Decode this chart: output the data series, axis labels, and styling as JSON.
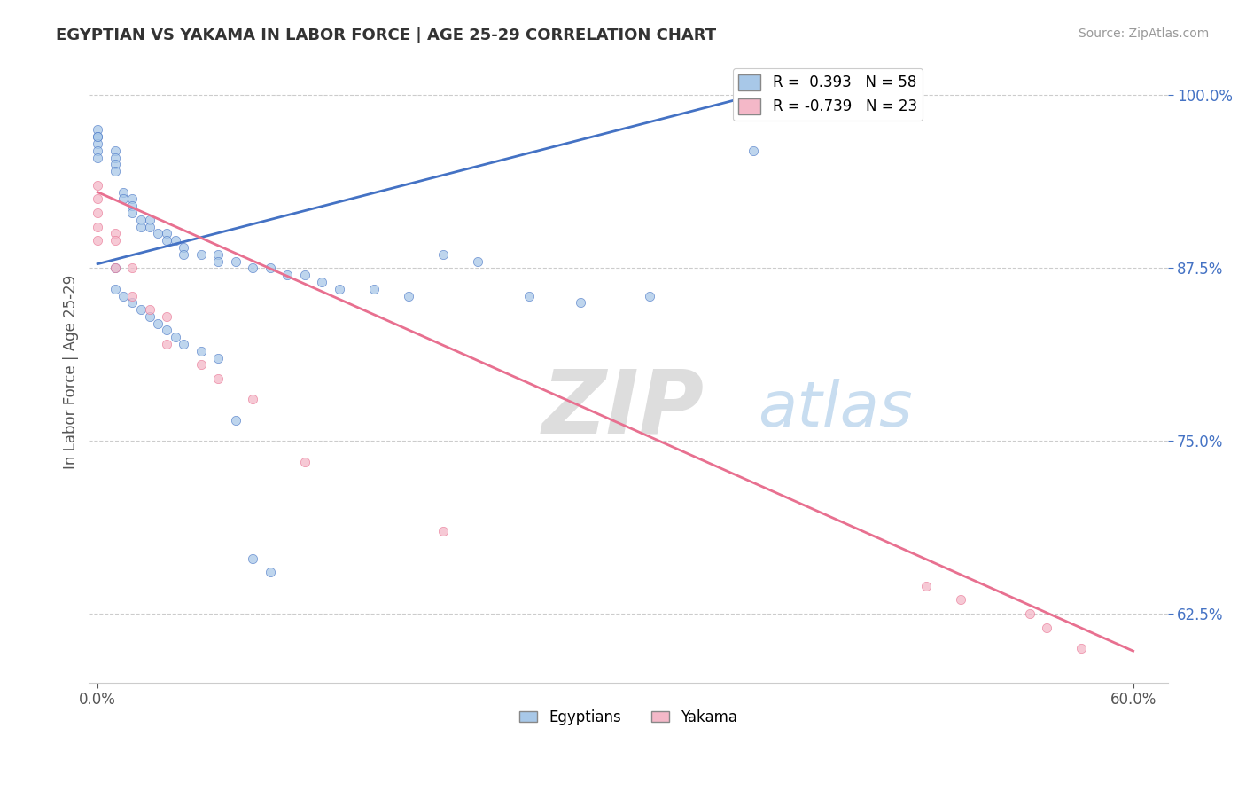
{
  "title": "EGYPTIAN VS YAKAMA IN LABOR FORCE | AGE 25-29 CORRELATION CHART",
  "source_text": "Source: ZipAtlas.com",
  "ylabel_text": "In Labor Force | Age 25-29",
  "xmin": -0.005,
  "xmax": 0.62,
  "ymin": 0.575,
  "ymax": 1.025,
  "ytick_vals": [
    1.0,
    0.875,
    0.75,
    0.625
  ],
  "ytick_labels": [
    "100.0%",
    "87.5%",
    "75.0%",
    "62.5%"
  ],
  "xtick_vals": [
    0.0,
    0.6
  ],
  "xtick_labels": [
    "0.0%",
    "60.0%"
  ],
  "legend_blue_label": "R =  0.393   N = 58",
  "legend_pink_label": "R = -0.739   N = 23",
  "legend_bottom_blue": "Egyptians",
  "legend_bottom_pink": "Yakama",
  "blue_color": "#a8c8e8",
  "pink_color": "#f4b8c8",
  "blue_line_color": "#4472c4",
  "pink_line_color": "#e87090",
  "blue_scatter_x": [
    0.0,
    0.0,
    0.0,
    0.0,
    0.0,
    0.0,
    0.01,
    0.01,
    0.01,
    0.01,
    0.015,
    0.015,
    0.02,
    0.02,
    0.02,
    0.025,
    0.025,
    0.03,
    0.03,
    0.035,
    0.04,
    0.04,
    0.045,
    0.05,
    0.05,
    0.06,
    0.07,
    0.07,
    0.08,
    0.09,
    0.1,
    0.11,
    0.12,
    0.13,
    0.14,
    0.16,
    0.18,
    0.2,
    0.22,
    0.25,
    0.28,
    0.32,
    0.38,
    0.01,
    0.01,
    0.015,
    0.02,
    0.025,
    0.03,
    0.035,
    0.04,
    0.045,
    0.05,
    0.06,
    0.07,
    0.08,
    0.09,
    0.1
  ],
  "blue_scatter_y": [
    0.975,
    0.97,
    0.965,
    0.96,
    0.955,
    0.97,
    0.96,
    0.955,
    0.95,
    0.945,
    0.93,
    0.925,
    0.925,
    0.92,
    0.915,
    0.91,
    0.905,
    0.91,
    0.905,
    0.9,
    0.9,
    0.895,
    0.895,
    0.89,
    0.885,
    0.885,
    0.885,
    0.88,
    0.88,
    0.875,
    0.875,
    0.87,
    0.87,
    0.865,
    0.86,
    0.86,
    0.855,
    0.885,
    0.88,
    0.855,
    0.85,
    0.855,
    0.96,
    0.875,
    0.86,
    0.855,
    0.85,
    0.845,
    0.84,
    0.835,
    0.83,
    0.825,
    0.82,
    0.815,
    0.81,
    0.765,
    0.665,
    0.655
  ],
  "pink_scatter_x": [
    0.0,
    0.0,
    0.0,
    0.0,
    0.0,
    0.01,
    0.01,
    0.01,
    0.02,
    0.02,
    0.03,
    0.04,
    0.04,
    0.06,
    0.07,
    0.09,
    0.12,
    0.2,
    0.55,
    0.57,
    0.5,
    0.54,
    0.48
  ],
  "pink_scatter_y": [
    0.935,
    0.925,
    0.915,
    0.905,
    0.895,
    0.9,
    0.895,
    0.875,
    0.875,
    0.855,
    0.845,
    0.84,
    0.82,
    0.805,
    0.795,
    0.78,
    0.735,
    0.685,
    0.615,
    0.6,
    0.635,
    0.625,
    0.645
  ],
  "blue_trend_x": [
    0.0,
    0.38
  ],
  "blue_trend_y": [
    0.878,
    1.0
  ],
  "pink_trend_x": [
    0.0,
    0.6
  ],
  "pink_trend_y": [
    0.93,
    0.598
  ]
}
